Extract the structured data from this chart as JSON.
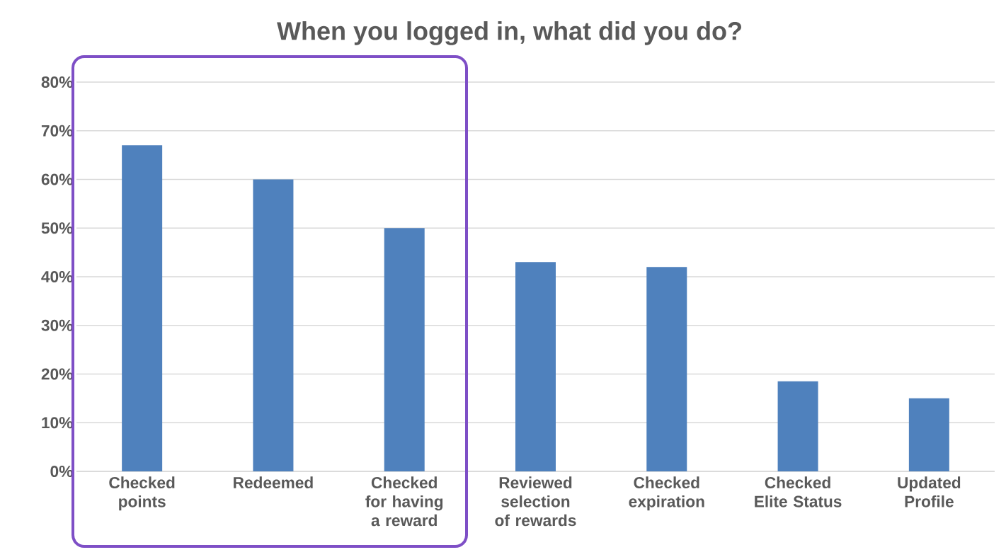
{
  "chart_data": {
    "type": "bar",
    "title": "When you logged in, what did you do?",
    "categories": [
      "Checked points",
      "Redeemed",
      "Checked for having a reward",
      "Reviewed selection of rewards",
      "Checked expiration",
      "Checked Elite Status",
      "Updated Profile"
    ],
    "values": [
      67,
      60,
      50,
      43,
      42,
      18.5,
      15
    ],
    "color": "#4f81bd",
    "ylim": [
      0,
      80
    ],
    "yticks": [
      {
        "value": 0,
        "label": "0%"
      },
      {
        "value": 10,
        "label": "10%"
      },
      {
        "value": 20,
        "label": "20%"
      },
      {
        "value": 30,
        "label": "30%"
      },
      {
        "value": 40,
        "label": "40%"
      },
      {
        "value": 50,
        "label": "50%"
      },
      {
        "value": 60,
        "label": "60%"
      },
      {
        "value": 70,
        "label": "70%"
      },
      {
        "value": 80,
        "label": "80%"
      }
    ],
    "grid": "y"
  }
}
